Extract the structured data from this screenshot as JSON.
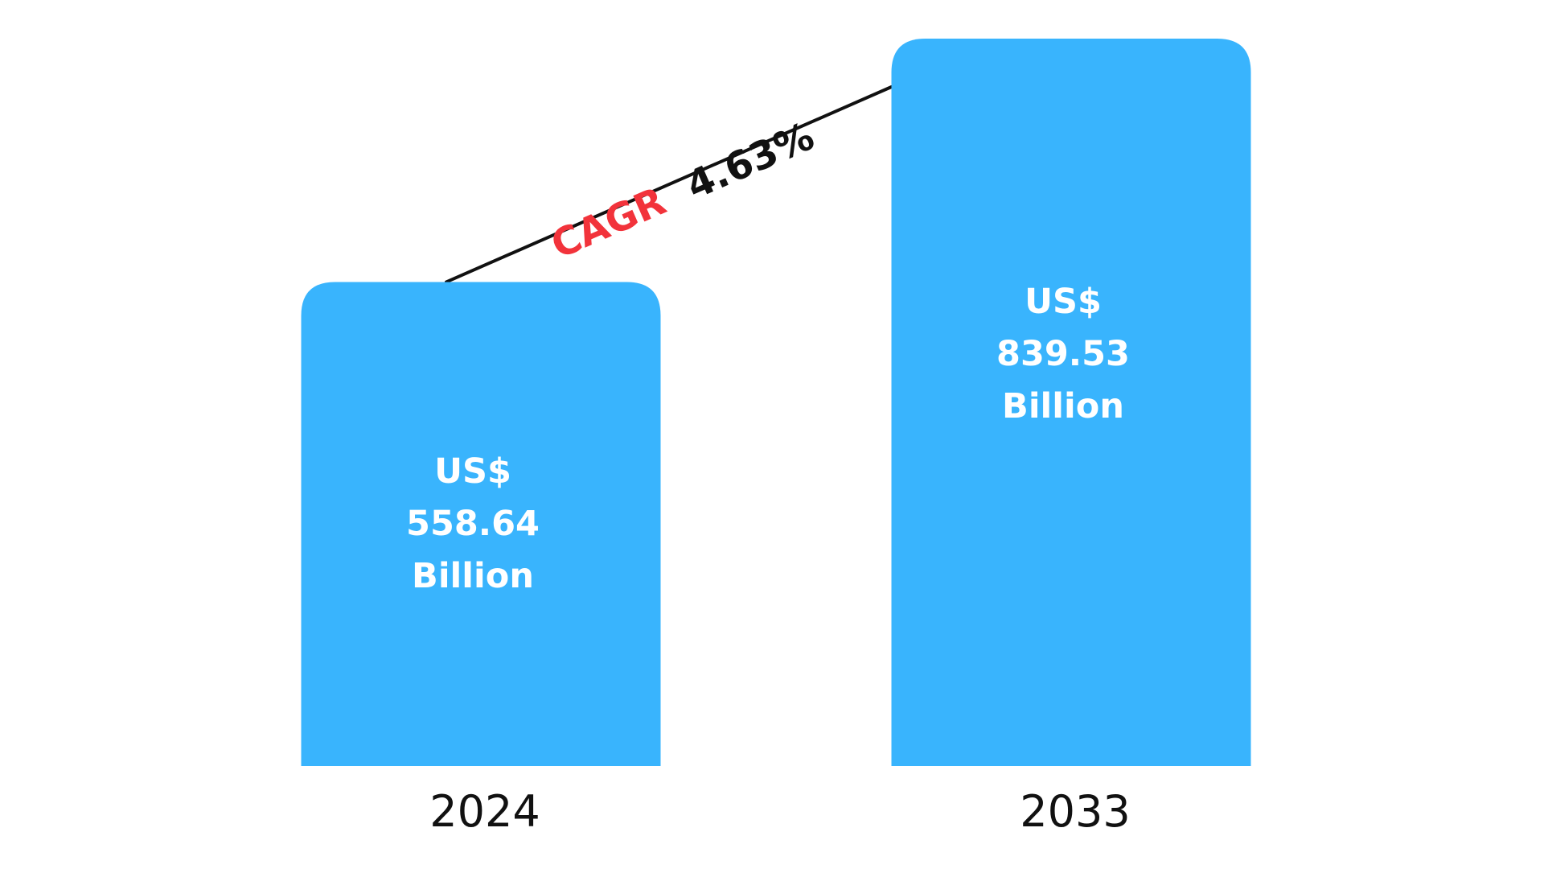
{
  "chart_data": {
    "type": "bar",
    "categories": [
      "2024",
      "2033"
    ],
    "values": [
      558.64,
      839.53
    ],
    "value_labels": [
      [
        "US$",
        "558.64",
        "Billion"
      ],
      [
        "US$",
        "839.53",
        "Billion"
      ]
    ],
    "ylim": [
      0,
      839.53
    ],
    "grid": false,
    "annotation": {
      "prefix": "CAGR",
      "value": "4.63%",
      "prefix_color": "#f2333b",
      "value_color": "#111111",
      "line_color": "#111111"
    },
    "bar_color": "#39b4fd"
  }
}
